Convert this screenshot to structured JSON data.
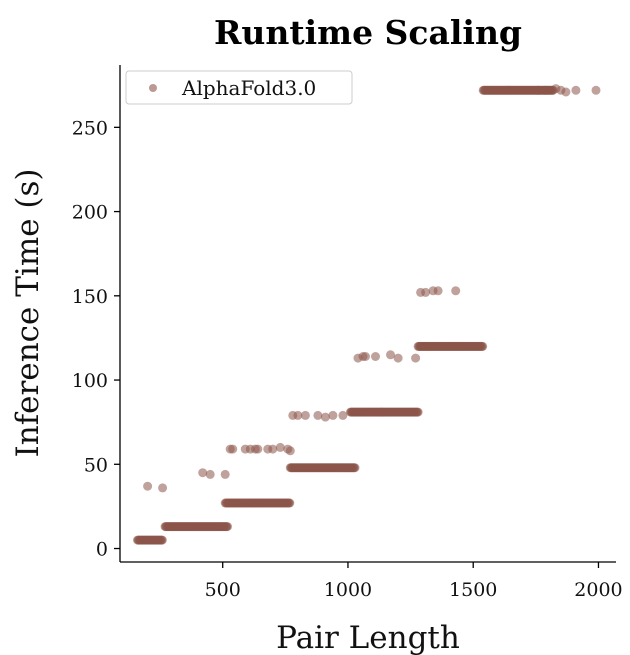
{
  "chart_data": {
    "type": "scatter",
    "title": "Runtime Scaling",
    "xlabel": "Pair Length",
    "ylabel": "Inference Time (s)",
    "xlim": [
      90,
      2070
    ],
    "ylim": [
      -8,
      287
    ],
    "xticks": [
      500,
      1000,
      1500,
      2000
    ],
    "yticks": [
      0,
      50,
      100,
      150,
      200,
      250
    ],
    "grid": false,
    "legend_position": "top-left",
    "series": [
      {
        "name": "AlphaFold3.0",
        "color": "#8c564b",
        "clusters": [
          {
            "x_range": [
              160,
              260
            ],
            "y": 5
          },
          {
            "x_range": [
              270,
              520
            ],
            "y": 13
          },
          {
            "x_range": [
              510,
              770
            ],
            "y": 27
          },
          {
            "x_range": [
              770,
              1030
            ],
            "y": 48
          },
          {
            "x_range": [
              1010,
              1280
            ],
            "y": 81
          },
          {
            "x_range": [
              1280,
              1540
            ],
            "y": 120
          },
          {
            "x_range": [
              1540,
              1820
            ],
            "y": 272
          }
        ],
        "outliers": [
          [
            200,
            37
          ],
          [
            260,
            36
          ],
          [
            420,
            45
          ],
          [
            450,
            44
          ],
          [
            510,
            44
          ],
          [
            530,
            59
          ],
          [
            540,
            59
          ],
          [
            590,
            59
          ],
          [
            610,
            59
          ],
          [
            630,
            59
          ],
          [
            640,
            59
          ],
          [
            680,
            59
          ],
          [
            700,
            59
          ],
          [
            730,
            60
          ],
          [
            760,
            59
          ],
          [
            770,
            58
          ],
          [
            780,
            79
          ],
          [
            800,
            79
          ],
          [
            830,
            79
          ],
          [
            880,
            79
          ],
          [
            910,
            78
          ],
          [
            940,
            79
          ],
          [
            980,
            79
          ],
          [
            1040,
            113
          ],
          [
            1060,
            114
          ],
          [
            1070,
            114
          ],
          [
            1110,
            114
          ],
          [
            1170,
            115
          ],
          [
            1200,
            113
          ],
          [
            1270,
            113
          ],
          [
            1290,
            152
          ],
          [
            1310,
            152
          ],
          [
            1340,
            153
          ],
          [
            1360,
            153
          ],
          [
            1430,
            153
          ],
          [
            1850,
            272
          ],
          [
            1870,
            271
          ],
          [
            1910,
            272
          ],
          [
            1990,
            272
          ],
          [
            1760,
            272
          ],
          [
            1790,
            272
          ],
          [
            1830,
            273
          ]
        ]
      }
    ]
  }
}
